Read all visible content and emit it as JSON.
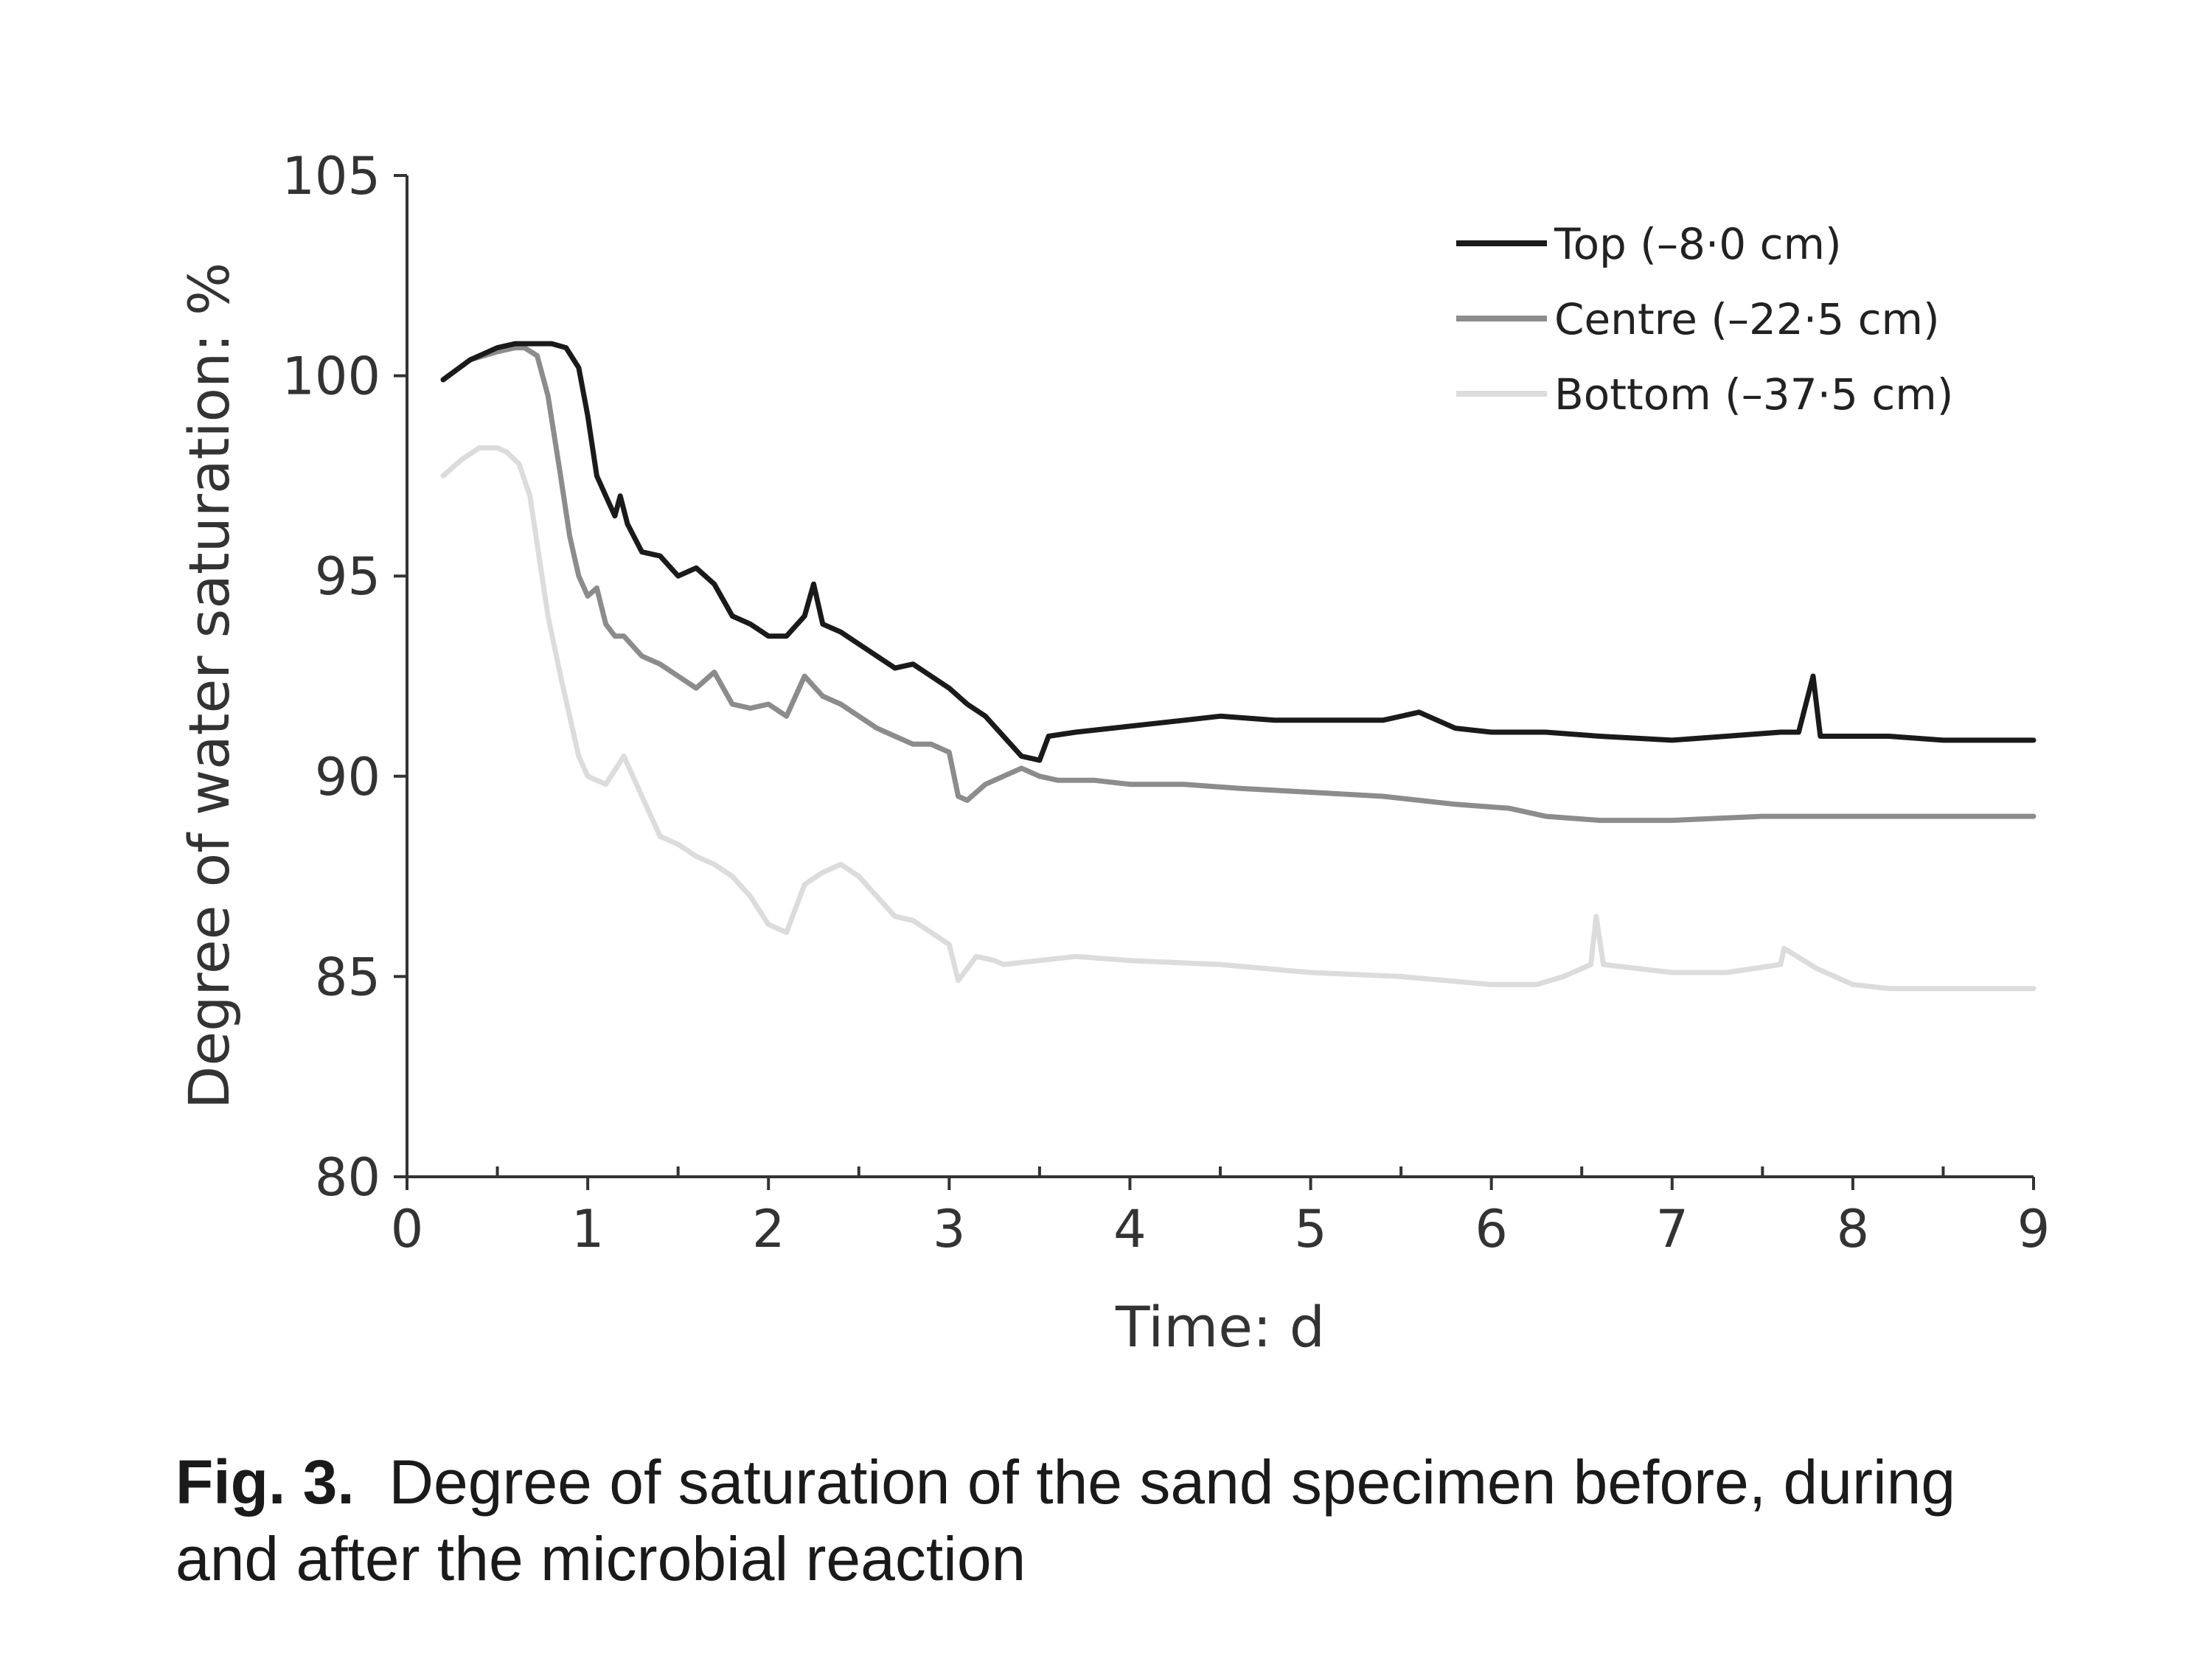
{
  "chart_data": {
    "type": "line",
    "xlabel": "Time: d",
    "ylabel": "Degree of water saturation: %",
    "xlim": [
      0,
      9
    ],
    "ylim": [
      80,
      105
    ],
    "xticks": [
      0,
      1,
      2,
      3,
      4,
      5,
      6,
      7,
      8,
      9
    ],
    "yticks": [
      80,
      85,
      90,
      95,
      100,
      105
    ],
    "grid": false,
    "legend_position": "top-right",
    "series": [
      {
        "name": "Top (–8·0 cm)",
        "color": "#1a1a1a",
        "x": [
          0.2,
          0.35,
          0.5,
          0.6,
          0.7,
          0.8,
          0.88,
          0.95,
          1.0,
          1.05,
          1.1,
          1.15,
          1.18,
          1.22,
          1.3,
          1.4,
          1.5,
          1.6,
          1.7,
          1.8,
          1.9,
          2.0,
          2.1,
          2.2,
          2.25,
          2.3,
          2.4,
          2.5,
          2.6,
          2.7,
          2.8,
          2.9,
          3.0,
          3.1,
          3.2,
          3.3,
          3.4,
          3.5,
          3.55,
          3.7,
          3.9,
          4.1,
          4.3,
          4.5,
          4.8,
          5.1,
          5.4,
          5.6,
          5.8,
          6.0,
          6.3,
          6.6,
          7.0,
          7.3,
          7.6,
          7.7,
          7.78,
          7.82,
          8.0,
          8.2,
          8.5,
          8.8,
          9.0
        ],
        "y": [
          99.9,
          100.4,
          100.7,
          100.8,
          100.8,
          100.8,
          100.7,
          100.2,
          99.0,
          97.5,
          97.0,
          96.5,
          97.0,
          96.3,
          95.6,
          95.5,
          95.0,
          95.2,
          94.8,
          94.0,
          93.8,
          93.5,
          93.5,
          94.0,
          94.8,
          93.8,
          93.6,
          93.3,
          93.0,
          92.7,
          92.8,
          92.5,
          92.2,
          91.8,
          91.5,
          91.0,
          90.5,
          90.4,
          91.0,
          91.1,
          91.2,
          91.3,
          91.4,
          91.5,
          91.4,
          91.4,
          91.4,
          91.6,
          91.2,
          91.1,
          91.1,
          91.0,
          90.9,
          91.0,
          91.1,
          91.1,
          92.5,
          91.0,
          91.0,
          91.0,
          90.9,
          90.9,
          90.9
        ]
      },
      {
        "name": "Centre (–22·5 cm)",
        "color": "#8c8c8c",
        "x": [
          0.2,
          0.35,
          0.5,
          0.6,
          0.65,
          0.72,
          0.78,
          0.85,
          0.9,
          0.95,
          1.0,
          1.05,
          1.1,
          1.15,
          1.2,
          1.3,
          1.4,
          1.5,
          1.6,
          1.7,
          1.8,
          1.9,
          2.0,
          2.1,
          2.2,
          2.3,
          2.4,
          2.5,
          2.6,
          2.7,
          2.8,
          2.9,
          3.0,
          3.05,
          3.1,
          3.2,
          3.3,
          3.4,
          3.5,
          3.6,
          3.8,
          4.0,
          4.3,
          4.6,
          5.0,
          5.4,
          5.8,
          6.1,
          6.3,
          6.6,
          7.0,
          7.5,
          8.0,
          8.5,
          9.0
        ],
        "y": [
          99.9,
          100.4,
          100.6,
          100.7,
          100.7,
          100.5,
          99.5,
          97.5,
          96.0,
          95.0,
          94.5,
          94.7,
          93.8,
          93.5,
          93.5,
          93.0,
          92.8,
          92.5,
          92.2,
          92.6,
          91.8,
          91.7,
          91.8,
          91.5,
          92.5,
          92.0,
          91.8,
          91.5,
          91.2,
          91.0,
          90.8,
          90.8,
          90.6,
          89.5,
          89.4,
          89.8,
          90.0,
          90.2,
          90.0,
          89.9,
          89.9,
          89.8,
          89.8,
          89.7,
          89.6,
          89.5,
          89.3,
          89.2,
          89.0,
          88.9,
          88.9,
          89.0,
          89.0,
          89.0,
          89.0
        ]
      },
      {
        "name": "Bottom (–37·5 cm)",
        "color": "#dcdcdc",
        "x": [
          0.2,
          0.3,
          0.4,
          0.5,
          0.55,
          0.62,
          0.68,
          0.72,
          0.78,
          0.85,
          0.9,
          0.95,
          1.0,
          1.1,
          1.2,
          1.3,
          1.4,
          1.5,
          1.6,
          1.7,
          1.8,
          1.9,
          2.0,
          2.1,
          2.2,
          2.3,
          2.4,
          2.5,
          2.6,
          2.7,
          2.8,
          2.9,
          3.0,
          3.05,
          3.15,
          3.25,
          3.3,
          3.5,
          3.7,
          4.0,
          4.5,
          5.0,
          5.5,
          6.0,
          6.25,
          6.4,
          6.55,
          6.58,
          6.62,
          7.0,
          7.3,
          7.6,
          7.62,
          7.8,
          8.0,
          8.2,
          8.5,
          9.0
        ],
        "y": [
          97.5,
          97.9,
          98.2,
          98.2,
          98.1,
          97.8,
          97.0,
          95.8,
          94.0,
          92.5,
          91.5,
          90.5,
          90.0,
          89.8,
          90.5,
          89.5,
          88.5,
          88.3,
          88.0,
          87.8,
          87.5,
          87.0,
          86.3,
          86.1,
          87.3,
          87.6,
          87.8,
          87.5,
          87.0,
          86.5,
          86.4,
          86.1,
          85.8,
          84.9,
          85.5,
          85.4,
          85.3,
          85.4,
          85.5,
          85.4,
          85.3,
          85.1,
          85.0,
          84.8,
          84.8,
          85.0,
          85.3,
          86.5,
          85.3,
          85.1,
          85.1,
          85.3,
          85.7,
          85.2,
          84.8,
          84.7,
          84.7,
          84.7
        ]
      }
    ]
  },
  "caption": {
    "label": "Fig. 3.",
    "text": "Degree of saturation of the sand specimen before, during and after the microbial reaction"
  }
}
